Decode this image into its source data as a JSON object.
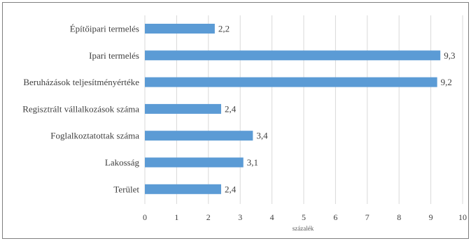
{
  "chart_data": {
    "type": "bar",
    "orientation": "horizontal",
    "categories": [
      "Építőipari termelés",
      "Ipari termelés",
      "Beruházások teljesítményértéke",
      "Regisztrált vállalkozások száma",
      "Foglalkoztatottak száma",
      "Lakosság",
      "Terület"
    ],
    "values": [
      2.2,
      9.3,
      9.2,
      2.4,
      3.4,
      3.1,
      2.4
    ],
    "data_labels": [
      "2,2",
      "9,3",
      "9,2",
      "2,4",
      "3,4",
      "3,1",
      "2,4"
    ],
    "title": "",
    "xlabel": "százalék",
    "ylabel": "",
    "xlim": [
      0,
      10
    ],
    "xticks": [
      "0",
      "1",
      "2",
      "3",
      "4",
      "5",
      "6",
      "7",
      "8",
      "9",
      "10"
    ],
    "grid": "vertical",
    "legend": "none",
    "bar_color": "#5b9bd5",
    "grid_color": "#d9d9d9",
    "text_color": "#404040"
  }
}
